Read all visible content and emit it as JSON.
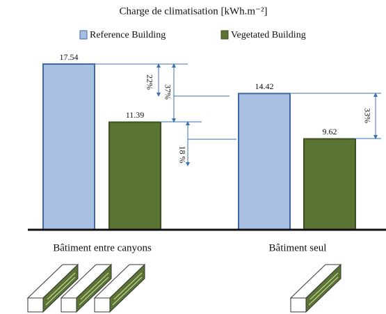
{
  "chart_data": {
    "type": "bar",
    "title": "Charge de climatisation [kWh.m⁻²]",
    "categories": [
      "Bâtiment entre canyons",
      "Bâtiment seul"
    ],
    "series": [
      {
        "name": "Reference Building",
        "color": "#a7c0e2",
        "values": [
          17.54,
          14.42
        ]
      },
      {
        "name": "Vegetated Building",
        "color": "#5b7333",
        "values": [
          11.39,
          9.62
        ]
      }
    ],
    "annotations": [
      "22%",
      "37%",
      "18 %",
      "33%"
    ],
    "legend": "top"
  }
}
